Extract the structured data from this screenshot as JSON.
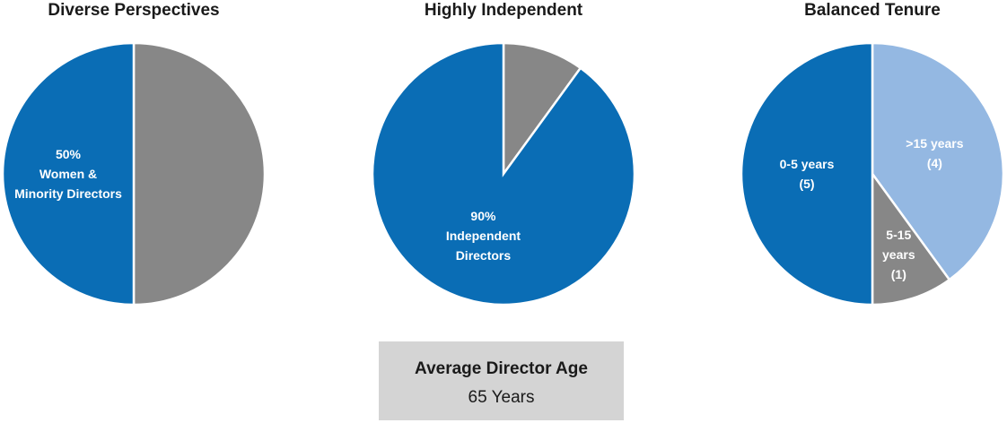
{
  "chart_data": [
    {
      "type": "pie",
      "title": "Diverse Perspectives",
      "categories": [
        null,
        "Women &\nMinority Directors"
      ],
      "values": [
        50,
        50
      ],
      "value_labels": [
        null,
        "50%"
      ],
      "colors": [
        "#878787",
        "#0a6db5"
      ],
      "label_order": "value-first"
    },
    {
      "type": "pie",
      "title": "Highly Independent",
      "categories": [
        null,
        "Independent\nDirectors"
      ],
      "values": [
        10,
        90
      ],
      "value_labels": [
        null,
        "90%"
      ],
      "colors": [
        "#878787",
        "#0a6db5"
      ],
      "label_order": "value-first"
    },
    {
      "type": "pie",
      "title": "Balanced Tenure",
      "categories": [
        ">15 years",
        "5-15\nyears",
        "0-5 years"
      ],
      "values": [
        4,
        1,
        5
      ],
      "value_labels": [
        "(4)",
        "(1)",
        "(5)"
      ],
      "colors": [
        "#94b8e2",
        "#878787",
        "#0a6db5"
      ],
      "label_order": "name-first"
    }
  ],
  "summary": {
    "title": "Average Director Age",
    "value": "65 Years"
  }
}
